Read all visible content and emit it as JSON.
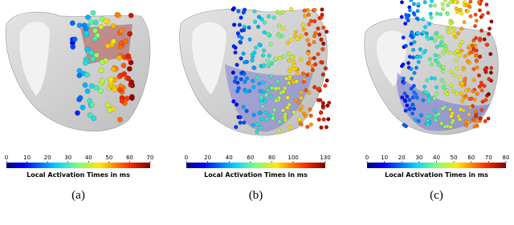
{
  "panels": [
    {
      "colorbar": {
        "ticks": [
          0,
          10,
          20,
          30,
          40,
          50,
          60,
          70
        ],
        "label": "Local Activation Times in ms"
      },
      "caption": "(a)"
    },
    {
      "colorbar": {
        "ticks": [
          0,
          20,
          40,
          60,
          80,
          100,
          130
        ],
        "label": "Local Activation Times in ms"
      },
      "caption": "(b)"
    },
    {
      "colorbar": {
        "ticks": [
          0,
          10,
          20,
          30,
          40,
          50,
          60,
          70,
          80
        ],
        "label": "Local Activation Times in ms"
      },
      "caption": "(c)"
    }
  ]
}
